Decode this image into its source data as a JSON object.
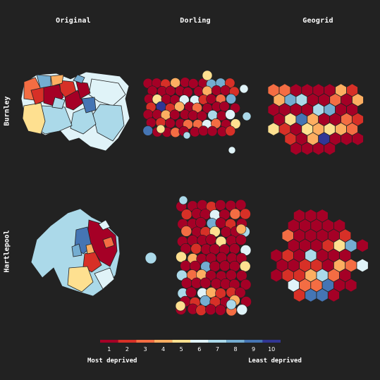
{
  "columns": [
    "Original",
    "Dorling",
    "Geogrid"
  ],
  "rows": [
    "Burnley",
    "Hartlepool"
  ],
  "legend": {
    "ticks": [
      "1",
      "2",
      "3",
      "4",
      "5",
      "6",
      "7",
      "8",
      "9",
      "10"
    ],
    "colors": [
      "#a50026",
      "#d73027",
      "#f46d43",
      "#fdae61",
      "#fee090",
      "#e0f3f8",
      "#abd9e9",
      "#74add1",
      "#4575b4",
      "#313695"
    ],
    "low_label": "Most deprived",
    "high_label": "Least deprived"
  },
  "colors": {
    "background": "#222222",
    "stroke": "#222222"
  }
}
